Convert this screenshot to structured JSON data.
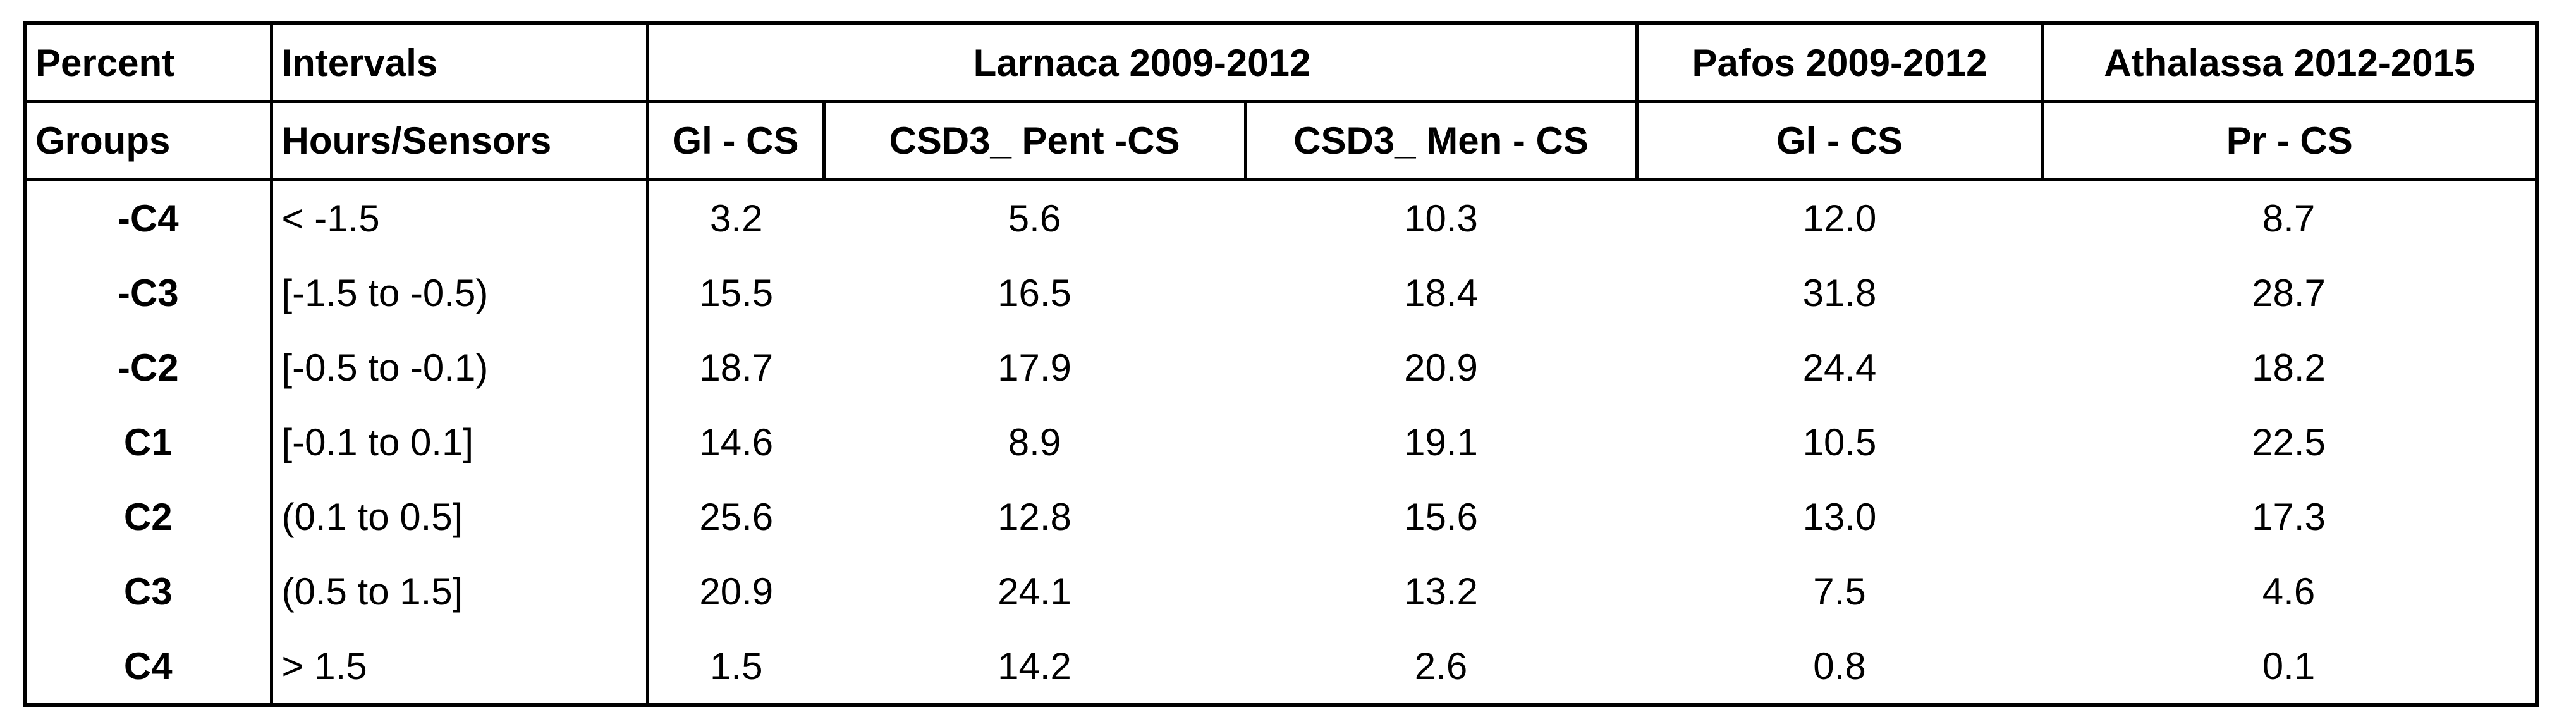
{
  "table": {
    "header_top": [
      "Percent",
      "Intervals",
      "Larnaca 2009-2012",
      "Pafos 2009-2012",
      "Athalassa 2012-2015"
    ],
    "header_sub": [
      "Groups",
      "Hours/Sensors",
      "Gl - CS",
      "CSD3_ Pent -CS",
      "CSD3_ Men - CS",
      "Gl - CS",
      "Pr - CS"
    ],
    "rows": [
      [
        "-C4",
        "< -1.5",
        "3.2",
        "5.6",
        "10.3",
        "12.0",
        "8.7"
      ],
      [
        "-C3",
        "[-1.5 to -0.5)",
        "15.5",
        "16.5",
        "18.4",
        "31.8",
        "28.7"
      ],
      [
        "-C2",
        "[-0.5 to -0.1)",
        "18.7",
        "17.9",
        "20.9",
        "24.4",
        "18.2"
      ],
      [
        "C1",
        "[-0.1 to 0.1]",
        "14.6",
        "8.9",
        "19.1",
        "10.5",
        "22.5"
      ],
      [
        "C2",
        "(0.1 to 0.5]",
        "25.6",
        "12.8",
        "15.6",
        "13.0",
        "17.3"
      ],
      [
        "C3",
        "(0.5 to 1.5]",
        "20.9",
        "24.1",
        "13.2",
        "7.5",
        "4.6"
      ],
      [
        "C4",
        "> 1.5",
        "1.5",
        "14.2",
        "2.6",
        "0.8",
        "0.1"
      ]
    ]
  }
}
